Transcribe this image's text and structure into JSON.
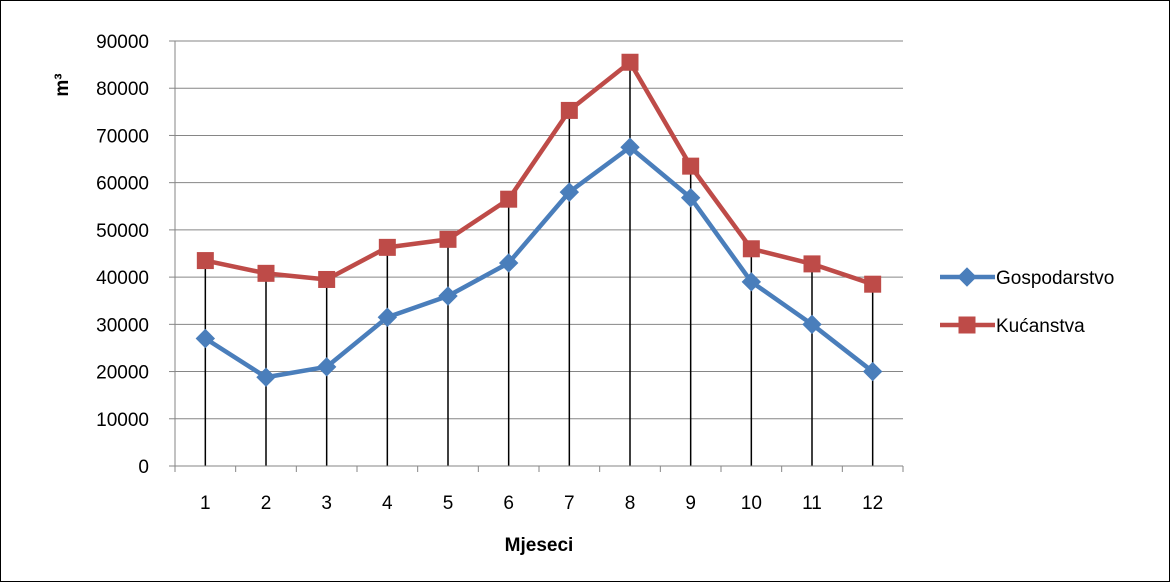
{
  "chart_data": {
    "type": "line",
    "categories": [
      "1",
      "2",
      "3",
      "4",
      "5",
      "6",
      "7",
      "8",
      "9",
      "10",
      "11",
      "12"
    ],
    "xlabel": "Mjeseci",
    "ylabel": "m³",
    "ylim": [
      0,
      90000
    ],
    "yticks": [
      "0",
      "10000",
      "20000",
      "30000",
      "40000",
      "50000",
      "60000",
      "70000",
      "80000",
      "90000"
    ],
    "grid": "horizontal",
    "drop_lines": true,
    "legend_position": "right",
    "series": [
      {
        "name": "Gospodarstvo",
        "color": "#4A7EBB",
        "marker": "diamond",
        "values": [
          27000,
          18800,
          21000,
          31500,
          36000,
          43000,
          58000,
          67500,
          56800,
          39000,
          30000,
          20000
        ]
      },
      {
        "name": "Kućanstva",
        "color": "#BE4B48",
        "marker": "square",
        "values": [
          43500,
          40800,
          39500,
          46300,
          48000,
          56500,
          75300,
          85500,
          63500,
          46000,
          42800,
          38500
        ]
      }
    ]
  }
}
